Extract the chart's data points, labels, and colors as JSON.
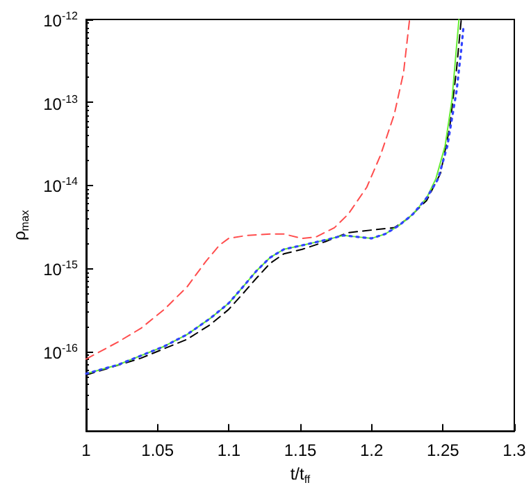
{
  "chart_data": {
    "type": "line",
    "xlabel": "t/t$_{ff}$",
    "ylabel": "ρ$_{max}$",
    "log": "y",
    "grid": false,
    "marker": "none",
    "xlim": [
      1,
      1.3
    ],
    "xticks": [
      1,
      1.05,
      1.1,
      1.15,
      1.2,
      1.25,
      1.3
    ],
    "ylim": [
      1.1e-17,
      1e-12
    ],
    "yticks": [
      {
        "value": 1e-16,
        "label": "10$^{-16}$"
      },
      {
        "value": 1e-15,
        "label": "10$^{-15}$"
      },
      {
        "value": 1e-14,
        "label": "10$^{-14}$"
      },
      {
        "value": 1e-13,
        "label": "10$^{-13}$"
      },
      {
        "value": 1e-12,
        "label": "10$^{-12}$"
      }
    ],
    "series": [
      {
        "color": "#ff4d4d",
        "line_style": "dashed",
        "x": [
          1.0,
          1.0223,
          1.0384,
          1.0546,
          1.0707,
          1.0836,
          1.0933,
          1.0998,
          1.1127,
          1.1288,
          1.1385,
          1.1514,
          1.1611,
          1.174,
          1.1836,
          1.1966,
          1.2062,
          1.2159,
          1.2224,
          1.2266
        ],
        "values": [
          8.1e-17,
          1.3e-16,
          1.9e-16,
          3.2e-16,
          6e-16,
          1.2e-15,
          1.9e-15,
          2.3e-15,
          2.5e-15,
          2.6e-15,
          2.6e-15,
          2.3e-15,
          2.4e-15,
          3.1e-15,
          4.5e-15,
          9.5e-15,
          2.3e-14,
          7.2e-14,
          2.3e-13,
          1e-12
        ]
      },
      {
        "color": "#000000",
        "line_style": "dashed",
        "x": [
          1.0,
          1.0384,
          1.0707,
          1.0869,
          1.0998,
          1.1095,
          1.1192,
          1.1288,
          1.1385,
          1.1514,
          1.1675,
          1.1836,
          1.1999,
          1.2159,
          1.2256,
          1.2386,
          1.2483,
          1.2547,
          1.2596,
          1.2628
        ],
        "values": [
          5.2e-17,
          8.3e-17,
          1.4e-16,
          2.1e-16,
          3.2e-16,
          4.9e-16,
          7.6e-16,
          1.15e-15,
          1.5e-15,
          1.7e-15,
          2.1e-15,
          2.7e-15,
          2.9e-15,
          3.1e-15,
          4e-15,
          6.6e-15,
          1.4e-14,
          5e-14,
          2.6e-13,
          1e-12
        ]
      },
      {
        "color": "#3344ff",
        "line_style": "dotted",
        "x": [
          1.0,
          1.0223,
          1.0384,
          1.0546,
          1.0707,
          1.0869,
          1.0998,
          1.1095,
          1.1192,
          1.1288,
          1.1385,
          1.1514,
          1.1675,
          1.1804,
          1.19,
          1.1999,
          1.2095,
          1.2192,
          1.2289,
          1.2386,
          1.2466,
          1.2531,
          1.2596,
          1.2628,
          1.2645
        ],
        "values": [
          5.4e-17,
          6.9e-17,
          8.9e-17,
          1.15e-16,
          1.6e-16,
          2.5e-16,
          3.8e-16,
          5.9e-16,
          9.3e-16,
          1.35e-15,
          1.7e-15,
          1.9e-15,
          2.2e-15,
          2.5e-15,
          2.4e-15,
          2.3e-15,
          2.6e-15,
          3.3e-15,
          4.5e-15,
          7.1e-15,
          1.2e-14,
          3e-14,
          1.4e-13,
          4.3e-13,
          8.5e-13
        ]
      },
      {
        "color": "#66ee33",
        "line_style": "solid",
        "x": [
          1.0,
          1.0223,
          1.0384,
          1.0546,
          1.0707,
          1.0869,
          1.0998,
          1.1095,
          1.1192,
          1.1288,
          1.1385,
          1.1514,
          1.1675,
          1.1804,
          1.19,
          1.1999,
          1.2095,
          1.2192,
          1.2289,
          1.2386,
          1.245,
          1.2515,
          1.2563,
          1.2596,
          1.2612
        ],
        "values": [
          5.4e-17,
          6.9e-17,
          8.9e-17,
          1.15e-16,
          1.6e-16,
          2.5e-16,
          3.8e-16,
          5.9e-16,
          9.3e-16,
          1.35e-15,
          1.7e-15,
          1.9e-15,
          2.2e-15,
          2.5e-15,
          2.4e-15,
          2.3e-15,
          2.6e-15,
          3.3e-15,
          4.5e-15,
          7.1e-15,
          1.2e-14,
          3e-14,
          1.07e-13,
          4.9e-13,
          1e-12
        ]
      }
    ]
  }
}
